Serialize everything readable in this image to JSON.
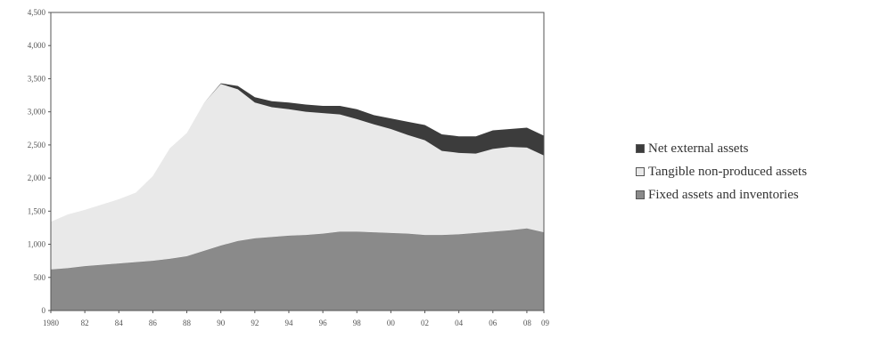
{
  "chart_data": {
    "type": "area",
    "stacked": true,
    "x": [
      1980,
      1981,
      1982,
      1983,
      1984,
      1985,
      1986,
      1987,
      1988,
      1989,
      1990,
      1991,
      1992,
      1993,
      1994,
      1995,
      1996,
      1997,
      1998,
      1999,
      2000,
      2001,
      2002,
      2003,
      2004,
      2005,
      2006,
      2007,
      2008,
      2009
    ],
    "x_tick_labels": [
      "1980",
      "82",
      "84",
      "86",
      "88",
      "90",
      "92",
      "94",
      "96",
      "98",
      "00",
      "02",
      "04",
      "06",
      "08",
      "09"
    ],
    "x_tick_positions": [
      1980,
      1982,
      1984,
      1986,
      1988,
      1990,
      1992,
      1994,
      1996,
      1998,
      2000,
      2002,
      2004,
      2006,
      2008,
      2009
    ],
    "y_tick_labels": [
      "0",
      "500",
      "1,000",
      "1,500",
      "2,000",
      "2,500",
      "3,000",
      "3,500",
      "4,000",
      "4,500"
    ],
    "ylim": [
      0,
      4500
    ],
    "grid": false,
    "legend_position": "right",
    "series": [
      {
        "name": "Fixed assets and inventories",
        "color": "#8a8a8a",
        "values": [
          620,
          640,
          670,
          690,
          710,
          730,
          750,
          780,
          820,
          900,
          980,
          1050,
          1090,
          1110,
          1130,
          1140,
          1160,
          1190,
          1190,
          1180,
          1170,
          1160,
          1140,
          1140,
          1150,
          1170,
          1190,
          1210,
          1240,
          1180
        ]
      },
      {
        "name": "Tangible non-produced assets",
        "color": "#e9e9e9",
        "values": [
          720,
          810,
          850,
          910,
          970,
          1050,
          1280,
          1670,
          1860,
          2230,
          2440,
          2290,
          2050,
          1960,
          1910,
          1860,
          1820,
          1770,
          1700,
          1630,
          1570,
          1490,
          1430,
          1270,
          1230,
          1200,
          1250,
          1260,
          1220,
          1160
        ]
      },
      {
        "name": "Net external assets",
        "color": "#3c3c3c",
        "values": [
          0,
          0,
          0,
          0,
          0,
          0,
          0,
          0,
          0,
          0,
          10,
          50,
          80,
          90,
          100,
          110,
          110,
          130,
          150,
          140,
          160,
          200,
          230,
          250,
          250,
          260,
          280,
          270,
          300,
          300
        ]
      }
    ]
  }
}
